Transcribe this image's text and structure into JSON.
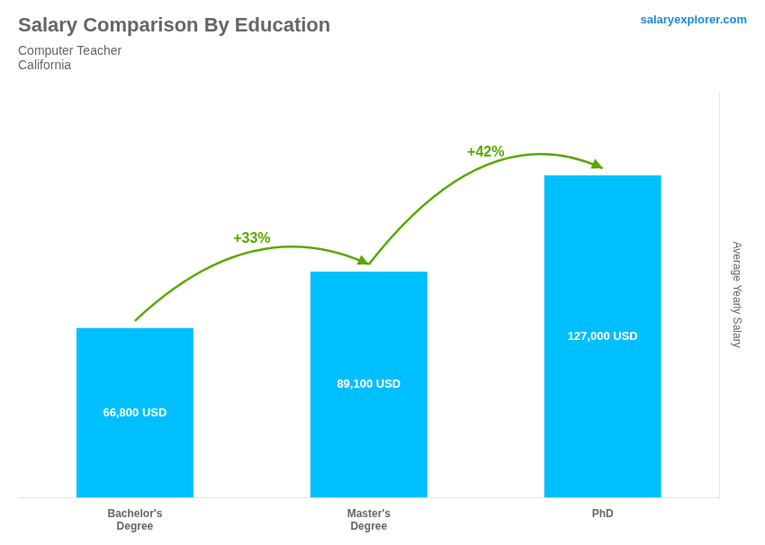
{
  "chart_data": {
    "type": "bar",
    "title": "Salary Comparison By Education",
    "subtitle": [
      "Computer Teacher",
      "California"
    ],
    "y_label": "Average Yearly Salary",
    "categories": [
      "Bachelor's\nDegree",
      "Master's\nDegree",
      "PhD"
    ],
    "values": [
      66800,
      89100,
      127000
    ],
    "value_labels": [
      "66,800 USD",
      "89,100 USD",
      "127,000 USD"
    ],
    "data_labels": true,
    "color": "#00BFFF",
    "ylim": [
      0,
      160000
    ],
    "tick_labels": "x",
    "grid": false,
    "annotations": [
      {
        "text": "+33%",
        "from": "Bachelor's\nDegree",
        "to": "Master's\nDegree"
      },
      {
        "text": "+42%",
        "from": "Master's\nDegree",
        "to": "PhD"
      },
      {
        "text": "salaryexplorer.com"
      }
    ]
  }
}
